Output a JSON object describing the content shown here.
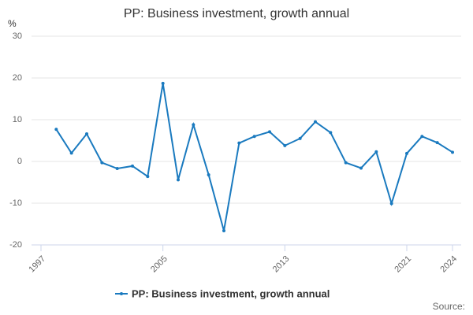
{
  "chart_data": {
    "type": "line",
    "title": "PP: Business investment, growth annual",
    "y_label": "%",
    "source": "Source:",
    "x": [
      1998,
      1999,
      2000,
      2001,
      2002,
      2003,
      2004,
      2005,
      2006,
      2007,
      2008,
      2009,
      2010,
      2011,
      2012,
      2013,
      2014,
      2015,
      2016,
      2017,
      2018,
      2019,
      2020,
      2021,
      2022,
      2023,
      2024
    ],
    "series": [
      {
        "name": "PP: Business investment, growth annual",
        "color": "#1a7abf",
        "values": [
          7.7,
          2.0,
          6.6,
          -0.3,
          -1.7,
          -1.1,
          -3.6,
          18.7,
          -4.4,
          8.8,
          -3.2,
          -16.6,
          4.4,
          6.0,
          7.1,
          3.8,
          5.5,
          9.5,
          6.9,
          -0.3,
          -1.6,
          2.3,
          -10.1,
          1.9,
          6.0,
          4.5,
          2.2
        ]
      }
    ],
    "xlim": [
      1997,
      2024
    ],
    "xticks": [
      1997,
      2005,
      2013,
      2021,
      2024
    ],
    "ylim": [
      -20,
      30
    ],
    "yticks": [
      -20,
      -10,
      0,
      10,
      20,
      30
    ],
    "grid": true
  }
}
